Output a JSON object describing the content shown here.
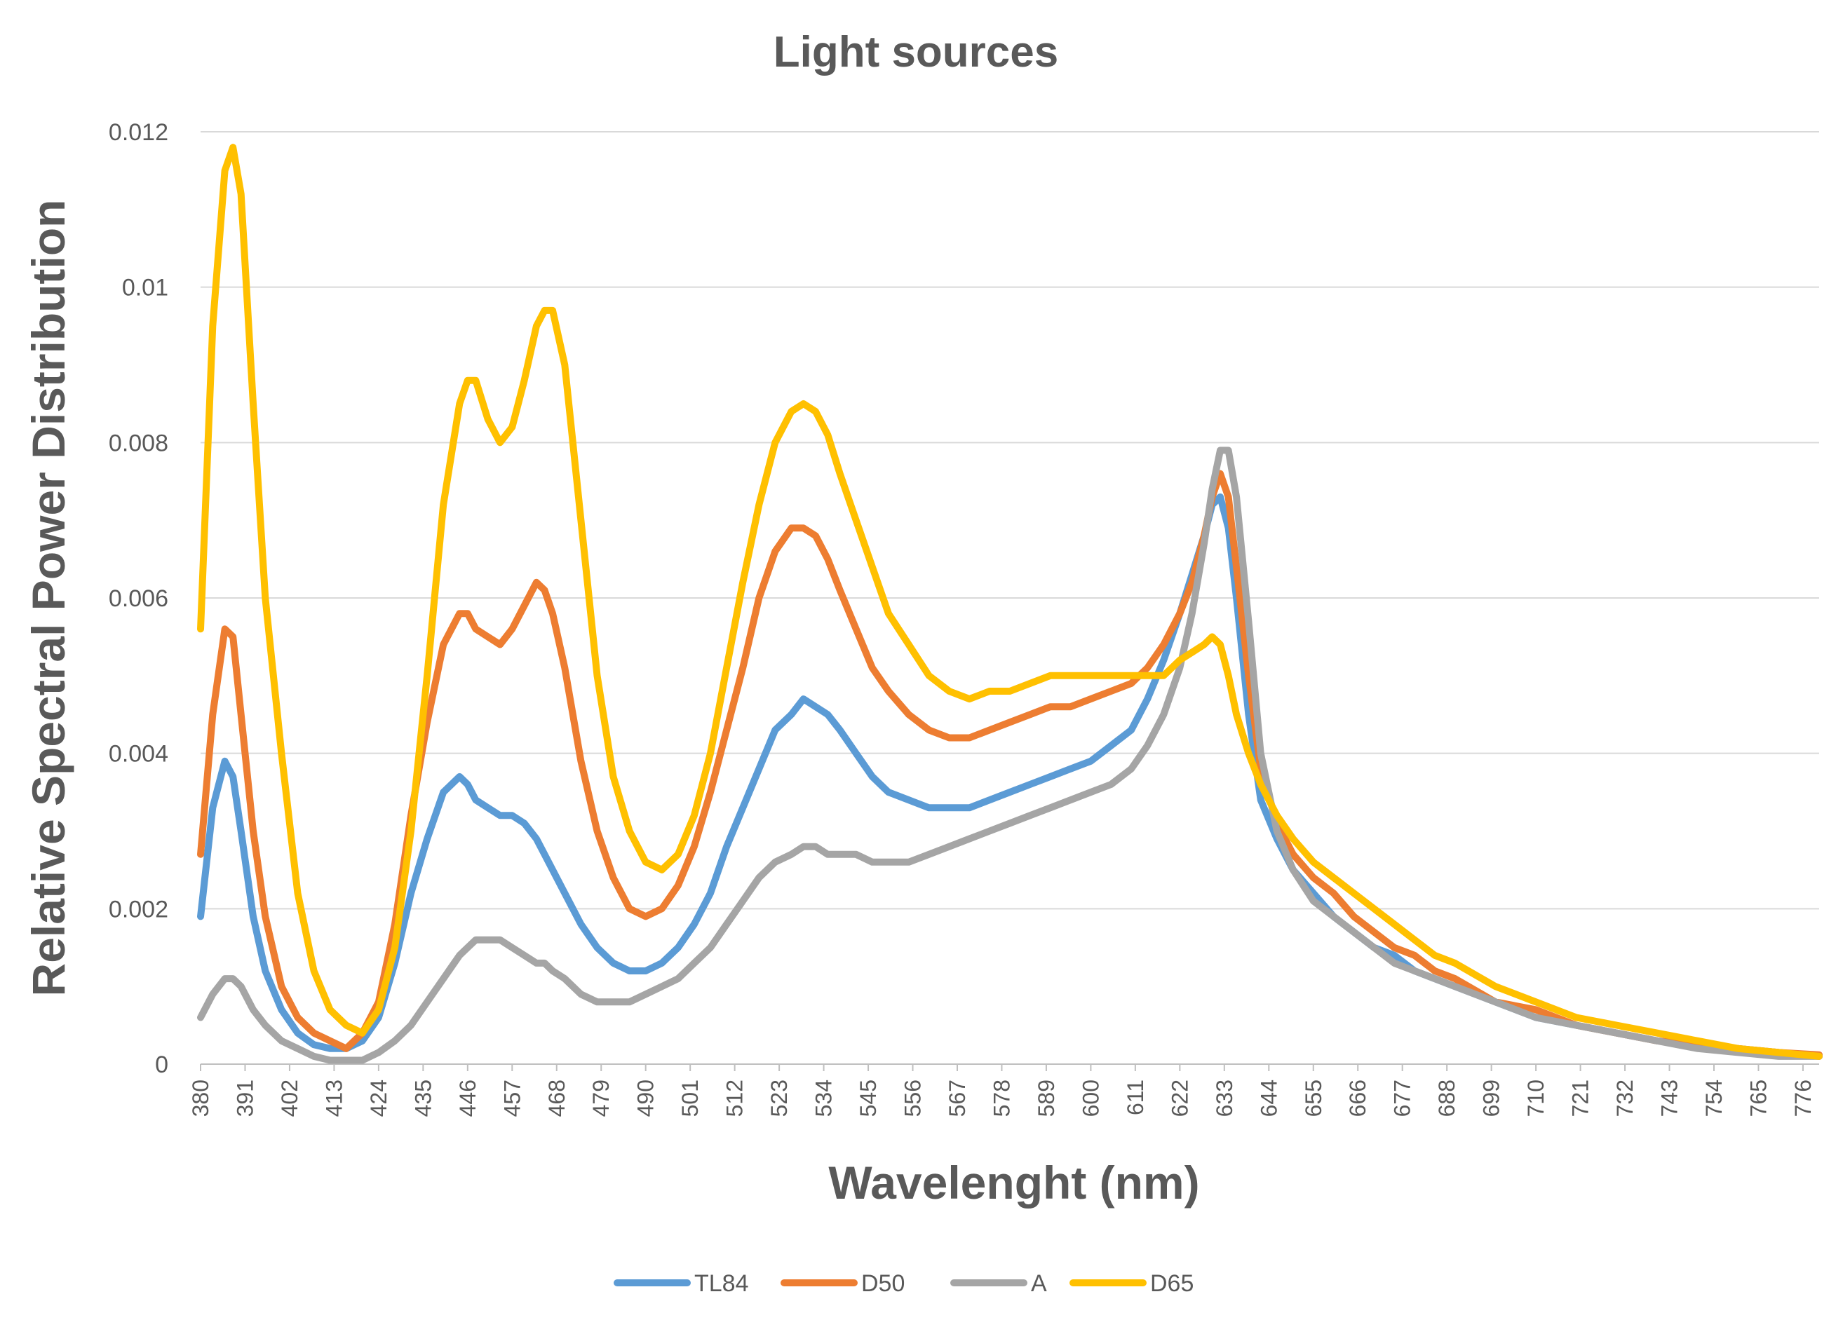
{
  "chart_data": {
    "type": "line",
    "title": "Light sources",
    "xlabel": "Wavelenght (nm)",
    "ylabel": "Relative Spectral Power Distribution",
    "xlim": [
      380,
      780
    ],
    "ylim": [
      0,
      0.012
    ],
    "y_ticks": [
      "0",
      "0.002",
      "0.004",
      "0.006",
      "0.008",
      "0.01",
      "0.012"
    ],
    "x_ticks": [
      "380",
      "391",
      "402",
      "413",
      "424",
      "435",
      "446",
      "457",
      "468",
      "479",
      "490",
      "501",
      "512",
      "523",
      "534",
      "545",
      "556",
      "567",
      "578",
      "589",
      "600",
      "611",
      "622",
      "633",
      "644",
      "655",
      "666",
      "677",
      "688",
      "699",
      "710",
      "721",
      "732",
      "743",
      "754",
      "765",
      "776"
    ],
    "grid": "horizontal",
    "legend_position": "bottom",
    "x": [
      380,
      383,
      386,
      388,
      390,
      393,
      396,
      400,
      404,
      408,
      412,
      416,
      420,
      424,
      428,
      432,
      436,
      440,
      444,
      446,
      448,
      451,
      454,
      457,
      460,
      463,
      465,
      467,
      470,
      474,
      478,
      482,
      486,
      490,
      494,
      498,
      502,
      506,
      510,
      514,
      518,
      522,
      526,
      529,
      532,
      535,
      538,
      542,
      546,
      550,
      555,
      560,
      565,
      570,
      575,
      580,
      585,
      590,
      595,
      600,
      605,
      610,
      614,
      618,
      622,
      625,
      628,
      630,
      632,
      634,
      636,
      639,
      642,
      646,
      650,
      655,
      660,
      665,
      670,
      675,
      680,
      685,
      690,
      700,
      710,
      720,
      730,
      740,
      750,
      760,
      770,
      780
    ],
    "series": [
      {
        "name": "TL84",
        "color": "#5b9bd5",
        "values": [
          0.0019,
          0.0033,
          0.0039,
          0.0037,
          0.003,
          0.0019,
          0.0012,
          0.0007,
          0.0004,
          0.00025,
          0.0002,
          0.0002,
          0.0003,
          0.0006,
          0.0013,
          0.0022,
          0.0029,
          0.0035,
          0.0037,
          0.0036,
          0.0034,
          0.0033,
          0.0032,
          0.0032,
          0.0031,
          0.0029,
          0.0027,
          0.0025,
          0.0022,
          0.0018,
          0.0015,
          0.0013,
          0.0012,
          0.0012,
          0.0013,
          0.0015,
          0.0018,
          0.0022,
          0.0028,
          0.0033,
          0.0038,
          0.0043,
          0.0045,
          0.0047,
          0.0046,
          0.0045,
          0.0043,
          0.004,
          0.0037,
          0.0035,
          0.0034,
          0.0033,
          0.0033,
          0.0033,
          0.0034,
          0.0035,
          0.0036,
          0.0037,
          0.0038,
          0.0039,
          0.0041,
          0.0043,
          0.0047,
          0.0052,
          0.0058,
          0.0063,
          0.0068,
          0.0072,
          0.0073,
          0.0069,
          0.006,
          0.0045,
          0.0034,
          0.0029,
          0.0025,
          0.0022,
          0.0019,
          0.0017,
          0.0015,
          0.0014,
          0.0012,
          0.0011,
          0.001,
          0.0008,
          0.0006,
          0.0005,
          0.0004,
          0.0003,
          0.00025,
          0.0002,
          0.00015,
          0.0001
        ]
      },
      {
        "name": "D50",
        "color": "#ed7d31",
        "values": [
          0.0027,
          0.0045,
          0.0056,
          0.0055,
          0.0045,
          0.003,
          0.0019,
          0.001,
          0.0006,
          0.0004,
          0.0003,
          0.0002,
          0.0004,
          0.0008,
          0.0018,
          0.0032,
          0.0044,
          0.0054,
          0.0058,
          0.0058,
          0.0056,
          0.0055,
          0.0054,
          0.0056,
          0.0059,
          0.0062,
          0.0061,
          0.0058,
          0.0051,
          0.0039,
          0.003,
          0.0024,
          0.002,
          0.0019,
          0.002,
          0.0023,
          0.0028,
          0.0035,
          0.0043,
          0.0051,
          0.006,
          0.0066,
          0.0069,
          0.0069,
          0.0068,
          0.0065,
          0.0061,
          0.0056,
          0.0051,
          0.0048,
          0.0045,
          0.0043,
          0.0042,
          0.0042,
          0.0043,
          0.0044,
          0.0045,
          0.0046,
          0.0046,
          0.0047,
          0.0048,
          0.0049,
          0.0051,
          0.0054,
          0.0058,
          0.0062,
          0.0068,
          0.0073,
          0.0076,
          0.0073,
          0.0064,
          0.005,
          0.0038,
          0.0031,
          0.0027,
          0.0024,
          0.0022,
          0.0019,
          0.0017,
          0.0015,
          0.0014,
          0.0012,
          0.0011,
          0.0008,
          0.0007,
          0.0005,
          0.0004,
          0.0003,
          0.00025,
          0.0002,
          0.00015,
          0.00012
        ]
      },
      {
        "name": "A",
        "color": "#a5a5a5",
        "values": [
          0.0006,
          0.0009,
          0.0011,
          0.0011,
          0.001,
          0.0007,
          0.0005,
          0.0003,
          0.0002,
          0.0001,
          5e-05,
          5e-05,
          5e-05,
          0.00015,
          0.0003,
          0.0005,
          0.0008,
          0.0011,
          0.0014,
          0.0015,
          0.0016,
          0.0016,
          0.0016,
          0.0015,
          0.0014,
          0.0013,
          0.0013,
          0.0012,
          0.0011,
          0.0009,
          0.0008,
          0.0008,
          0.0008,
          0.0009,
          0.001,
          0.0011,
          0.0013,
          0.0015,
          0.0018,
          0.0021,
          0.0024,
          0.0026,
          0.0027,
          0.0028,
          0.0028,
          0.0027,
          0.0027,
          0.0027,
          0.0026,
          0.0026,
          0.0026,
          0.0027,
          0.0028,
          0.0029,
          0.003,
          0.0031,
          0.0032,
          0.0033,
          0.0034,
          0.0035,
          0.0036,
          0.0038,
          0.0041,
          0.0045,
          0.0051,
          0.0058,
          0.0067,
          0.0074,
          0.0079,
          0.0079,
          0.0073,
          0.0057,
          0.004,
          0.003,
          0.0025,
          0.0021,
          0.0019,
          0.0017,
          0.0015,
          0.0013,
          0.0012,
          0.0011,
          0.001,
          0.0008,
          0.0006,
          0.0005,
          0.0004,
          0.0003,
          0.0002,
          0.00015,
          0.0001,
          0.0001
        ]
      },
      {
        "name": "D65",
        "color": "#ffc000",
        "values": [
          0.0056,
          0.0095,
          0.0115,
          0.0118,
          0.0112,
          0.0085,
          0.006,
          0.004,
          0.0022,
          0.0012,
          0.0007,
          0.0005,
          0.0004,
          0.0007,
          0.0015,
          0.003,
          0.005,
          0.0072,
          0.0085,
          0.0088,
          0.0088,
          0.0083,
          0.008,
          0.0082,
          0.0088,
          0.0095,
          0.0097,
          0.0097,
          0.009,
          0.007,
          0.005,
          0.0037,
          0.003,
          0.0026,
          0.0025,
          0.0027,
          0.0032,
          0.004,
          0.0051,
          0.0062,
          0.0072,
          0.008,
          0.0084,
          0.0085,
          0.0084,
          0.0081,
          0.0076,
          0.007,
          0.0064,
          0.0058,
          0.0054,
          0.005,
          0.0048,
          0.0047,
          0.0048,
          0.0048,
          0.0049,
          0.005,
          0.005,
          0.005,
          0.005,
          0.005,
          0.005,
          0.005,
          0.0052,
          0.0053,
          0.0054,
          0.0055,
          0.0054,
          0.005,
          0.0045,
          0.004,
          0.0036,
          0.0032,
          0.0029,
          0.0026,
          0.0024,
          0.0022,
          0.002,
          0.0018,
          0.0016,
          0.0014,
          0.0013,
          0.001,
          0.0008,
          0.0006,
          0.0005,
          0.0004,
          0.0003,
          0.0002,
          0.00015,
          0.0001
        ]
      }
    ]
  }
}
